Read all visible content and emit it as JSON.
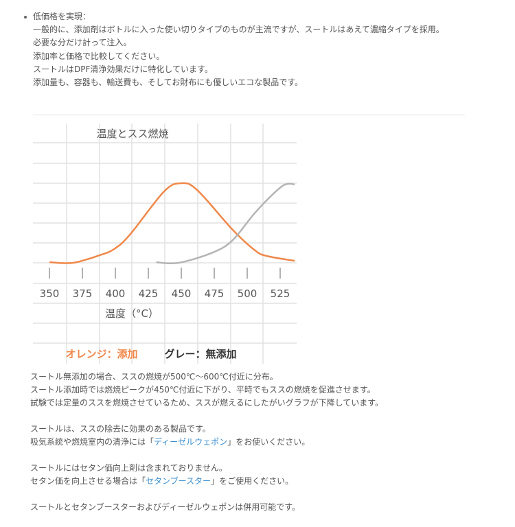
{
  "feature": {
    "heading": "低価格を実現：",
    "lines": [
      "一般的に、添加剤はボトルに入った使い切りタイプのものが主流ですが、スートルはあえて濃縮タイプを採用。",
      "必要な分だけ計って注入。",
      "添加率と価格で比較してください。",
      "スートルはDPF清浄効果だけに特化しています。",
      "添加量も、容器も、輸送費も、そしてお財布にも優しいエコな製品です。"
    ]
  },
  "chart_data": {
    "type": "line",
    "title": "温度とスス燃焼",
    "xlabel": "温度（°C）",
    "ylabel": "",
    "x_ticks": [
      "350",
      "375",
      "400",
      "425",
      "450",
      "475",
      "500",
      "525"
    ],
    "xlim": [
      345,
      537
    ],
    "ylim": [
      0,
      4
    ],
    "grid": true,
    "legend": {
      "added": "オレンジ：添加",
      "not_added": "グレー：無添加",
      "placement": "bottom"
    },
    "series": [
      {
        "key": "added",
        "color": "#f0884a",
        "points": [
          [
            350,
            0.03
          ],
          [
            368,
            0
          ],
          [
            388,
            0.38
          ],
          [
            399,
            0.69
          ],
          [
            411,
            1.41
          ],
          [
            437,
            3.59
          ],
          [
            450,
            4.0
          ],
          [
            462,
            3.66
          ],
          [
            489,
            1.66
          ],
          [
            506,
            0.62
          ],
          [
            515,
            0.34
          ],
          [
            536,
            0.1
          ]
        ]
      },
      {
        "key": "not_added",
        "color": "#b4b4b4",
        "points": [
          [
            431,
            0.03
          ],
          [
            448,
            0
          ],
          [
            474,
            0.52
          ],
          [
            489,
            1.14
          ],
          [
            506,
            2.52
          ],
          [
            524,
            3.72
          ],
          [
            531,
            3.97
          ],
          [
            536,
            3.93
          ]
        ]
      }
    ]
  },
  "paragraphs": {
    "p1": [
      "スートル無添加の場合、ススの燃焼が500℃～600℃付近に分布。",
      "スートル添加時では燃焼ピークが450℃付近に下がり、平時でもススの燃焼を促進させます。",
      "試験では定量のススを燃焼させているため、ススが燃えるにしたがいグラフが下降しています。"
    ],
    "p2": {
      "line1": "スートルは、ススの除去に効果のある製品です。",
      "line2_before": "吸気系統や燃焼室内の清浄には「",
      "line2_link": "ディーゼルウェポン",
      "line2_after": "」をお使いください。"
    },
    "p3": {
      "line1": "スートルにはセタン価向上剤は含まれておりません。",
      "line2_before": "セタン価を向上させる場合は「",
      "line2_link": "セタンブースター",
      "line2_after": "」をご使用ください。"
    },
    "p4": "スートルとセタンブースターおよびディーゼルウェポンは併用可能です。"
  },
  "colors": {
    "text": "#555555",
    "link": "#3a8fd0",
    "orange": "#f0884a",
    "grey": "#b4b4b4"
  }
}
